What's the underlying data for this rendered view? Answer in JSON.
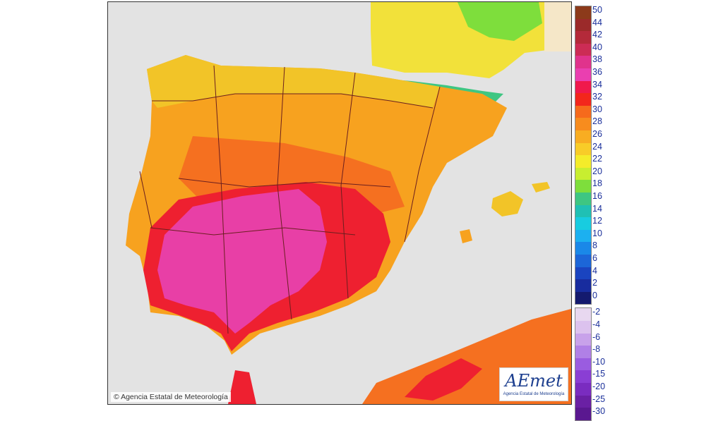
{
  "map": {
    "credit": "© Agencia Estatal de Meteorología",
    "logo": {
      "text": "AEmet",
      "subtitle": "Agencia Estatal de Meteorología"
    },
    "colors": {
      "sea": "#e3e3e3",
      "border": "#6b1f1f",
      "ranges": {
        "t18_22": "#c8ec2c",
        "t22_26": "#f2e13a",
        "t26_30": "#f7a21f",
        "t30_34": "#f57020",
        "t34_36": "#ee2030",
        "t36_38": "#e83fa6"
      }
    }
  },
  "legend": {
    "positive": [
      {
        "label": "50",
        "color": "#8c3a1a"
      },
      {
        "label": "44",
        "color": "#9b2a2a"
      },
      {
        "label": "42",
        "color": "#b42a3a"
      },
      {
        "label": "40",
        "color": "#cc2c55"
      },
      {
        "label": "38",
        "color": "#e0338c"
      },
      {
        "label": "36",
        "color": "#ea3fb0"
      },
      {
        "label": "34",
        "color": "#f0194c"
      },
      {
        "label": "32",
        "color": "#f3261c"
      },
      {
        "label": "30",
        "color": "#f66a1c"
      },
      {
        "label": "28",
        "color": "#f78c1e"
      },
      {
        "label": "26",
        "color": "#f8ad22"
      },
      {
        "label": "24",
        "color": "#f8cc28"
      },
      {
        "label": "22",
        "color": "#f4ec2a"
      },
      {
        "label": "20",
        "color": "#c8ee30"
      },
      {
        "label": "18",
        "color": "#7ede3c"
      },
      {
        "label": "16",
        "color": "#3ec682"
      },
      {
        "label": "14",
        "color": "#20c0b4"
      },
      {
        "label": "12",
        "color": "#18cce0"
      },
      {
        "label": "10",
        "color": "#1cb0f0"
      },
      {
        "label": "8",
        "color": "#1a88e8"
      },
      {
        "label": "6",
        "color": "#1c66d8"
      },
      {
        "label": "4",
        "color": "#1a44c0"
      },
      {
        "label": "2",
        "color": "#182c9e"
      },
      {
        "label": "0",
        "color": "#141a6e"
      }
    ],
    "negative": [
      {
        "label": "-2",
        "color": "#e8d8f0"
      },
      {
        "label": "-4",
        "color": "#dcc2ee"
      },
      {
        "label": "-6",
        "color": "#c8a2ea"
      },
      {
        "label": "-8",
        "color": "#b080e6"
      },
      {
        "label": "-10",
        "color": "#9a5ce0"
      },
      {
        "label": "-15",
        "color": "#8a3ed4"
      },
      {
        "label": "-20",
        "color": "#7a2cc0"
      },
      {
        "label": "-25",
        "color": "#6a20a4"
      },
      {
        "label": "-30",
        "color": "#5a1890"
      }
    ]
  }
}
